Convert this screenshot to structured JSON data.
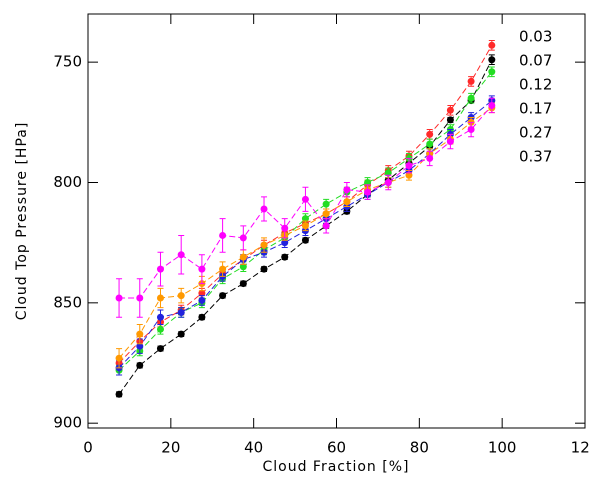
{
  "chart_data": {
    "type": "line",
    "xlabel": "Cloud Fraction [%]",
    "ylabel": "Cloud Top Pressure [HPa]",
    "x": [
      7.5,
      12.5,
      17.5,
      22.5,
      27.5,
      32.5,
      37.5,
      42.5,
      47.5,
      52.5,
      57.5,
      62.5,
      67.5,
      72.5,
      77.5,
      82.5,
      87.5,
      92.5,
      97.5
    ],
    "xlim": [
      0,
      120
    ],
    "xticks": [
      0,
      20,
      40,
      60,
      80,
      100,
      120
    ],
    "ylim": [
      902,
      730
    ],
    "yticks": [
      750,
      800,
      850,
      900
    ],
    "series": [
      {
        "name": "0.03",
        "color": "#000000",
        "values": [
          888,
          876,
          869,
          863,
          856,
          847,
          842,
          836,
          831,
          824,
          818,
          812,
          805,
          799,
          792,
          785,
          774,
          766,
          749
        ],
        "errors": [
          1,
          1,
          1,
          1,
          1,
          1,
          1,
          1,
          1,
          1,
          1,
          1,
          1,
          1,
          1,
          1,
          1,
          1,
          2
        ]
      },
      {
        "name": "0.07",
        "color": "#ff2a2a",
        "values": [
          875,
          866,
          858,
          853,
          846,
          838,
          832,
          826,
          821,
          817,
          813,
          808,
          801,
          795,
          789,
          780,
          770,
          758,
          743
        ],
        "errors": [
          2,
          2,
          2,
          2,
          2,
          2,
          2,
          2,
          2,
          2,
          2,
          2,
          2,
          2,
          2,
          2,
          2,
          2,
          2
        ]
      },
      {
        "name": "0.12",
        "color": "#22dd22",
        "values": [
          878,
          870,
          861,
          854,
          850,
          840,
          835,
          828,
          823,
          815,
          809,
          804,
          800,
          796,
          790,
          784,
          778,
          765,
          754
        ],
        "errors": [
          2,
          2,
          2,
          2,
          2,
          2,
          2,
          2,
          2,
          2,
          2,
          2,
          2,
          2,
          2,
          2,
          2,
          2,
          2
        ]
      },
      {
        "name": "0.17",
        "color": "#2222dd",
        "values": [
          877,
          868,
          856,
          854,
          849,
          839,
          832,
          829,
          825,
          820,
          815,
          810,
          805,
          800,
          795,
          788,
          780,
          773,
          766
        ],
        "errors": [
          3,
          3,
          3,
          2,
          2,
          2,
          2,
          2,
          2,
          2,
          2,
          2,
          2,
          2,
          2,
          2,
          2,
          2,
          2
        ]
      },
      {
        "name": "0.27",
        "color": "#ff9900",
        "values": [
          873,
          863,
          848,
          847,
          842,
          836,
          831,
          826,
          822,
          818,
          813,
          808,
          803,
          800,
          797,
          788,
          782,
          775,
          769
        ],
        "errors": [
          4,
          4,
          4,
          3,
          3,
          3,
          3,
          3,
          2,
          2,
          2,
          2,
          2,
          2,
          2,
          2,
          2,
          2,
          2
        ]
      },
      {
        "name": "0.37",
        "color": "#ff00ff",
        "values": [
          848,
          848,
          836,
          830,
          836,
          822,
          823,
          811,
          819,
          807,
          818,
          803,
          804,
          800,
          793,
          790,
          783,
          778,
          768
        ],
        "errors": [
          8,
          8,
          7,
          8,
          6,
          7,
          5,
          5,
          4,
          5,
          3,
          3,
          3,
          3,
          3,
          3,
          3,
          3,
          3
        ]
      }
    ]
  }
}
